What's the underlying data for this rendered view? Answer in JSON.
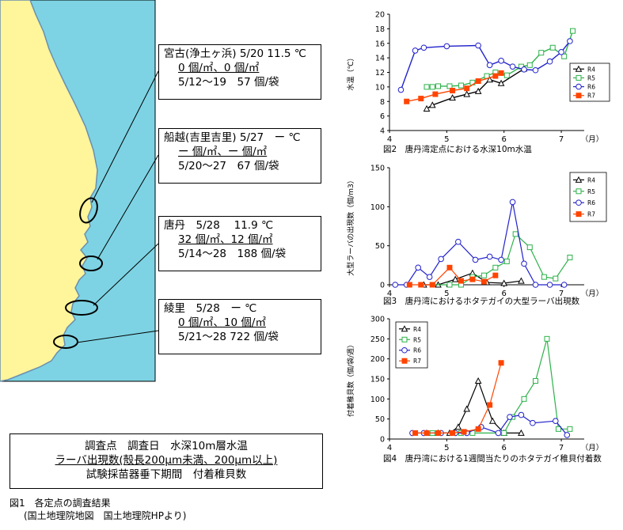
{
  "colors": {
    "sea": "#7dd3e3",
    "land": "#fff59a",
    "coast": "#6a8fb0",
    "R4": "#000000",
    "R5": "#2db24a",
    "R6": "#2222cc",
    "R7": "#ff4400"
  },
  "callouts": [
    {
      "line1": "宮古(浄土ヶ浜) 5/20 11.5 ℃",
      "line2": "0 個/㎡、0 個/㎡",
      "line3": "5/12～19　57 個/袋"
    },
    {
      "line1": "船越(吉里吉里) 5/27　ー ℃",
      "line2": "ー 個/㎡、ー 個/㎡",
      "line3": "5/20～27　67 個/袋"
    },
    {
      "line1": "唐丹　5/28　 11.9 ℃",
      "line2": "32 個/㎡、12 個/㎡",
      "line3": "5/14～28　188 個/袋"
    },
    {
      "line1": "綾里　5/28　ー ℃",
      "line2": "0 個/㎡、10 個/㎡",
      "line3": "5/21～28 722 個/袋"
    }
  ],
  "key_box": {
    "line1": "調査点　調査日　水深10m層水温",
    "line2": "ラーバ出現数(殻長200μm未満、200μm以上)",
    "line3": "試験採苗器垂下期間　付着稚貝数"
  },
  "fig1_caption": {
    "line1": "図1　各定点の調査結果",
    "line2": "(国土地理院地図　国土地理院HPより)"
  },
  "chart_data": [
    {
      "type": "line",
      "caption": "図2　唐丹湾定点における水深10m水温",
      "ylabel": "水温（℃）",
      "xunit": "（月）",
      "xlim": [
        4,
        7.4
      ],
      "ylim": [
        4,
        20
      ],
      "xticks": [
        "4",
        "5",
        "6",
        "7"
      ],
      "yticks": [
        "4",
        "6",
        "8",
        "10",
        "12",
        "14",
        "16",
        "18",
        "20"
      ],
      "series": [
        {
          "name": "R4",
          "x": [
            4.65,
            4.75,
            5.1,
            5.35,
            5.55,
            5.75,
            5.95,
            6.35
          ],
          "y": [
            7.0,
            7.5,
            8.5,
            9.0,
            9.4,
            11.0,
            10.5,
            12.5
          ]
        },
        {
          "name": "R5",
          "x": [
            4.65,
            4.75,
            4.85,
            5.05,
            5.25,
            5.45,
            5.7,
            5.85,
            6.05,
            6.3,
            6.45,
            6.65,
            6.85,
            7.05,
            7.2
          ],
          "y": [
            10.0,
            10.0,
            10.1,
            10.1,
            10.2,
            10.6,
            11.5,
            12.0,
            11.6,
            12.8,
            13.0,
            14.7,
            15.4,
            14.2,
            17.7
          ]
        },
        {
          "name": "R6",
          "x": [
            4.2,
            4.45,
            4.6,
            5.0,
            5.55,
            5.75,
            5.95,
            6.15,
            6.35,
            6.55,
            6.8,
            7.0,
            7.15
          ],
          "y": [
            9.6,
            15.0,
            15.4,
            15.6,
            15.7,
            13.0,
            13.6,
            12.8,
            12.4,
            12.3,
            13.5,
            14.8,
            16.3
          ]
        },
        {
          "name": "R7",
          "x": [
            4.3,
            4.55,
            4.8,
            5.1,
            5.35,
            5.55,
            5.85,
            5.95
          ],
          "y": [
            8.0,
            8.4,
            9.0,
            9.5,
            9.8,
            10.8,
            11.5,
            11.9
          ]
        }
      ]
    },
    {
      "type": "line",
      "caption": "図3　唐丹湾におけるホタテガイの大型ラーバ出現数",
      "ylabel": "大型ラーバの出現数（個/m3）",
      "xunit": "（月）",
      "xlim": [
        4,
        7.4
      ],
      "ylim": [
        0,
        150
      ],
      "xticks": [
        "4",
        "5",
        "6",
        "7"
      ],
      "yticks": [
        "0",
        "50",
        "100",
        "150"
      ],
      "series": [
        {
          "name": "R4",
          "x": [
            4.6,
            4.85,
            5.15,
            5.45,
            5.7,
            6.0,
            6.3
          ],
          "y": [
            0,
            0,
            7,
            15,
            3,
            2,
            5
          ]
        },
        {
          "name": "R5",
          "x": [
            4.75,
            5.05,
            5.25,
            5.45,
            5.65,
            5.85,
            6.05,
            6.2,
            6.45,
            6.7,
            6.9,
            7.15
          ],
          "y": [
            0,
            0,
            0,
            10,
            12,
            22,
            30,
            65,
            48,
            10,
            8,
            35
          ]
        },
        {
          "name": "R6",
          "x": [
            4.1,
            4.3,
            4.5,
            4.7,
            4.9,
            5.2,
            5.5,
            5.75,
            5.95,
            6.15,
            6.35,
            6.55,
            6.8,
            7.05
          ],
          "y": [
            0,
            0,
            22,
            10,
            33,
            55,
            32,
            36,
            32,
            106,
            27,
            0,
            0,
            0
          ]
        },
        {
          "name": "R7",
          "x": [
            4.35,
            4.55,
            4.75,
            5.05,
            5.25,
            5.45,
            5.65,
            5.85
          ],
          "y": [
            0,
            0,
            0,
            22,
            5,
            7,
            4,
            12
          ]
        }
      ]
    },
    {
      "type": "line",
      "caption": "図4　唐丹湾における1週間当たりのホタテガイ稚貝付着数",
      "ylabel": "付着稚貝数（個/袋/週）",
      "xunit": "（月）",
      "xlim": [
        4,
        7.4
      ],
      "ylim": [
        0,
        300
      ],
      "xticks": [
        "4",
        "5",
        "6",
        "7"
      ],
      "yticks": [
        "0",
        "50",
        "100",
        "150",
        "200",
        "250",
        "300"
      ],
      "series": [
        {
          "name": "R4",
          "x": [
            4.65,
            4.85,
            5.05,
            5.2,
            5.35,
            5.55,
            5.8,
            6.0,
            6.3
          ],
          "y": [
            15,
            15,
            15,
            30,
            75,
            145,
            45,
            15,
            15
          ]
        },
        {
          "name": "R5",
          "x": [
            4.75,
            5.25,
            5.45,
            6.0,
            6.15,
            6.35,
            6.55,
            6.75,
            6.95,
            7.15
          ],
          "y": [
            15,
            15,
            15,
            15,
            55,
            100,
            145,
            250,
            25,
            25
          ]
        },
        {
          "name": "R6",
          "x": [
            4.4,
            4.6,
            4.9,
            5.15,
            5.35,
            5.6,
            5.9,
            6.1,
            6.3,
            6.5,
            6.9,
            7.1
          ],
          "y": [
            15,
            15,
            15,
            15,
            15,
            30,
            15,
            55,
            60,
            40,
            45,
            10
          ]
        },
        {
          "name": "R7",
          "x": [
            4.45,
            4.65,
            4.85,
            5.1,
            5.3,
            5.55,
            5.75,
            5.95
          ],
          "y": [
            15,
            15,
            15,
            15,
            18,
            25,
            85,
            190
          ]
        }
      ]
    }
  ]
}
